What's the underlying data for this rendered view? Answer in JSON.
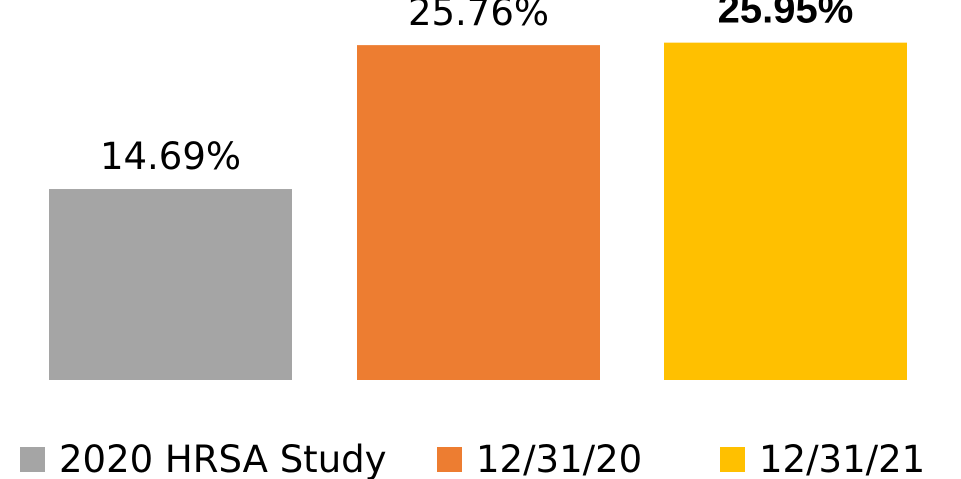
{
  "chart_data": {
    "type": "bar",
    "categories": [
      "2020 HRSA Study",
      "12/31/20",
      "12/31/21"
    ],
    "values": [
      14.69,
      25.76,
      25.95
    ],
    "data_labels": [
      "14.69%",
      "25.76%",
      "25.95%"
    ],
    "label_emphasis": [
      false,
      false,
      true
    ],
    "colors": [
      "#a5a5a5",
      "#ed7d31",
      "#ffc000"
    ],
    "title": "",
    "xlabel": "",
    "ylabel": "",
    "ylim": [
      0,
      26
    ],
    "grid": false,
    "legend": {
      "position": "bottom",
      "entries": [
        "2020 HRSA Study",
        "12/31/20",
        "12/31/21"
      ]
    }
  }
}
